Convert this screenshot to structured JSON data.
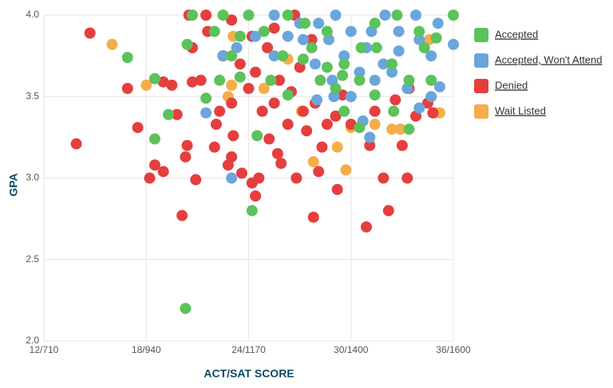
{
  "chart_data": {
    "type": "scatter",
    "x_label": "ACT/SAT SCORE",
    "y_label": "GPA",
    "xlim": [
      12,
      36
    ],
    "ylim": [
      2,
      4
    ],
    "xticks": [
      {
        "value": 12,
        "label": "12/710"
      },
      {
        "value": 18,
        "label": "18/940"
      },
      {
        "value": 24,
        "label": "24/1170"
      },
      {
        "value": 30,
        "label": "30/1400"
      },
      {
        "value": 36,
        "label": "36/1600"
      }
    ],
    "yticks": [
      {
        "value": 2,
        "label": "2.0"
      },
      2.5,
      {
        "value": 3,
        "label": "3.0"
      },
      3.5,
      {
        "value": 4,
        "label": "4.0"
      }
    ],
    "grid": true,
    "legend": "right",
    "series": [
      {
        "name": "Accepted",
        "color": "#5cc25a",
        "x": [
          20.3,
          24.2,
          18.5,
          16.9,
          18.5,
          19.3,
          20.4,
          20.7,
          21.5,
          22.3,
          23.5,
          24.5,
          22.5,
          23.5,
          24.9,
          26.3,
          27.2,
          27.7,
          28.6,
          29.6,
          30.5,
          31.5,
          32.4,
          33.4,
          34.3,
          35.0,
          36.0,
          33.4,
          32.5,
          29.6,
          30.5,
          31.4,
          26.3,
          25.3,
          28.2,
          29.1,
          30.6,
          31.4,
          32.7,
          34.0,
          34.7,
          27.3,
          28.6,
          29.5,
          26.0,
          24.0,
          22.0,
          23.0
        ],
        "y": [
          2.2,
          2.8,
          3.24,
          3.74,
          3.61,
          3.39,
          3.82,
          4.0,
          3.49,
          3.6,
          3.62,
          3.26,
          4.0,
          3.87,
          3.9,
          4.0,
          3.73,
          3.8,
          3.9,
          3.7,
          3.6,
          3.8,
          3.7,
          3.6,
          3.8,
          3.86,
          4.0,
          3.3,
          3.41,
          3.41,
          3.31,
          3.51,
          3.51,
          3.6,
          3.6,
          3.55,
          3.8,
          3.95,
          4.0,
          3.9,
          3.6,
          3.95,
          3.68,
          3.63,
          3.75,
          4.0,
          3.9,
          3.75
        ]
      },
      {
        "name": "Accepted, Won't Attend",
        "color": "#6aa5dc",
        "x": [
          21.5,
          23.0,
          22.5,
          23.3,
          24.4,
          25.5,
          25.5,
          27.2,
          28.0,
          29.0,
          30.0,
          30.7,
          31.1,
          28.1,
          29.1,
          30.0,
          30.9,
          31.9,
          32.8,
          33.8,
          34.7,
          35.2,
          36.0,
          31.4,
          32.4,
          33.3,
          29.6,
          30.5,
          32.0,
          32.8,
          34.0,
          35.1,
          28.7,
          27.0,
          26.3,
          28.9,
          27.9,
          34.7,
          34.0,
          31.2
        ],
        "y": [
          3.4,
          3.0,
          3.75,
          3.8,
          3.87,
          4.0,
          3.75,
          3.85,
          3.48,
          3.5,
          3.5,
          3.35,
          3.25,
          3.95,
          4.0,
          3.9,
          3.8,
          3.7,
          3.9,
          4.0,
          3.75,
          3.56,
          3.82,
          3.6,
          3.65,
          3.55,
          3.75,
          3.65,
          4.0,
          3.78,
          3.85,
          3.95,
          3.85,
          3.95,
          3.87,
          3.6,
          3.7,
          3.5,
          3.43,
          3.9
        ]
      },
      {
        "name": "Denied",
        "color": "#e53e3e",
        "x": [
          13.9,
          14.7,
          16.9,
          17.5,
          18.2,
          18.5,
          19.0,
          19.0,
          19.5,
          19.8,
          20.1,
          20.3,
          20.4,
          20.7,
          20.9,
          20.5,
          20.7,
          21.2,
          21.5,
          22.0,
          22.1,
          22.3,
          22.8,
          23.0,
          23.1,
          23.6,
          24.4,
          24.2,
          24.6,
          25.2,
          25.7,
          25.9,
          24.8,
          25.5,
          26.8,
          27.8,
          28.1,
          28.3,
          29.2,
          28.6,
          29.1,
          30.0,
          30.9,
          31.1,
          32.2,
          31.9,
          33.0,
          33.3,
          33.8,
          34.8,
          22.5,
          23.5,
          24.0,
          24.4,
          23.0,
          25.1,
          25.8,
          26.5,
          27.0,
          27.2,
          27.9,
          26.3,
          27.4,
          29.5,
          31.4,
          32.6,
          33.4,
          34.5,
          21.6,
          23.0,
          24.2,
          25.5,
          26.7,
          27.7
        ],
        "y": [
          3.21,
          3.89,
          3.55,
          3.31,
          3.0,
          3.08,
          3.04,
          3.59,
          3.57,
          3.39,
          2.77,
          3.13,
          3.2,
          3.59,
          2.99,
          4.0,
          3.8,
          3.6,
          4.0,
          3.19,
          3.33,
          3.41,
          3.08,
          3.13,
          3.26,
          3.03,
          2.89,
          2.97,
          3.0,
          3.24,
          3.15,
          3.09,
          3.41,
          3.46,
          3.0,
          2.76,
          3.04,
          3.19,
          2.93,
          3.33,
          3.38,
          3.33,
          2.7,
          3.2,
          2.8,
          3.0,
          3.2,
          3.0,
          3.38,
          3.4,
          3.75,
          3.7,
          3.55,
          3.65,
          3.46,
          3.8,
          3.6,
          3.53,
          3.68,
          3.41,
          3.46,
          3.33,
          3.29,
          3.51,
          3.41,
          3.48,
          3.55,
          3.46,
          3.9,
          3.97,
          3.87,
          3.92,
          4.0,
          3.85
        ]
      },
      {
        "name": "Wait Listed",
        "color": "#f5ad4a",
        "x": [
          16.0,
          18.0,
          23.0,
          22.8,
          23.1,
          27.8,
          29.7,
          29.2,
          30.0,
          31.4,
          32.4,
          32.9,
          34.9,
          35.2,
          27.1,
          26.3,
          24.9,
          34.6
        ],
        "y": [
          3.82,
          3.57,
          3.57,
          3.5,
          3.87,
          3.1,
          3.05,
          3.19,
          3.31,
          3.33,
          3.3,
          3.3,
          3.4,
          3.4,
          3.41,
          3.73,
          3.55,
          3.85
        ]
      }
    ]
  }
}
